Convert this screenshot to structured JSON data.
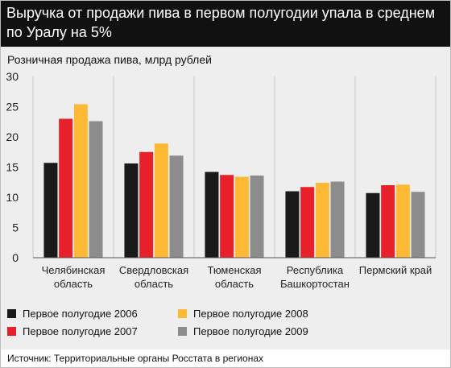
{
  "header": {
    "title": "Выручка от продажи пива в первом полугодии упала в среднем по Уралу на 5%"
  },
  "footer": {
    "source": "Источник: Территориальные органы Росстата в регионах"
  },
  "colors": {
    "header_bg": "#111111",
    "panel_bg": "#eeeeee",
    "series": [
      "#1a1a1a",
      "#e8202a",
      "#fdb933",
      "#8c8c8c"
    ]
  },
  "chart_data": {
    "type": "bar",
    "title": "Выручка от продажи пива в первом полугодии упала в среднем по Уралу на 5%",
    "subtitle": "Розничная продажа пива, млрд рублей",
    "ylim": [
      0,
      30
    ],
    "yticks": [
      0,
      5,
      10,
      15,
      20,
      25,
      30
    ],
    "grid": "vertical separators between categories",
    "legend_position": "bottom",
    "categories": [
      [
        "Челябинская",
        "область"
      ],
      [
        "Свердловская",
        "область"
      ],
      [
        "Тюменская",
        "область"
      ],
      [
        "Республика",
        "Башкортостан"
      ],
      [
        "Пермский край"
      ]
    ],
    "series": [
      {
        "name": "Первое полугодие 2006",
        "color": "#1a1a1a",
        "values": [
          15.7,
          15.6,
          14.2,
          11.0,
          10.7
        ]
      },
      {
        "name": "Первое полугодие 2007",
        "color": "#e8202a",
        "values": [
          23.0,
          17.5,
          13.7,
          11.7,
          12.0
        ]
      },
      {
        "name": "Первое полугодие 2008",
        "color": "#fdb933",
        "values": [
          25.4,
          18.9,
          13.4,
          12.4,
          12.1
        ]
      },
      {
        "name": "Первое полугодие 2009",
        "color": "#8c8c8c",
        "values": [
          22.6,
          16.9,
          13.6,
          12.6,
          10.9
        ]
      }
    ]
  }
}
